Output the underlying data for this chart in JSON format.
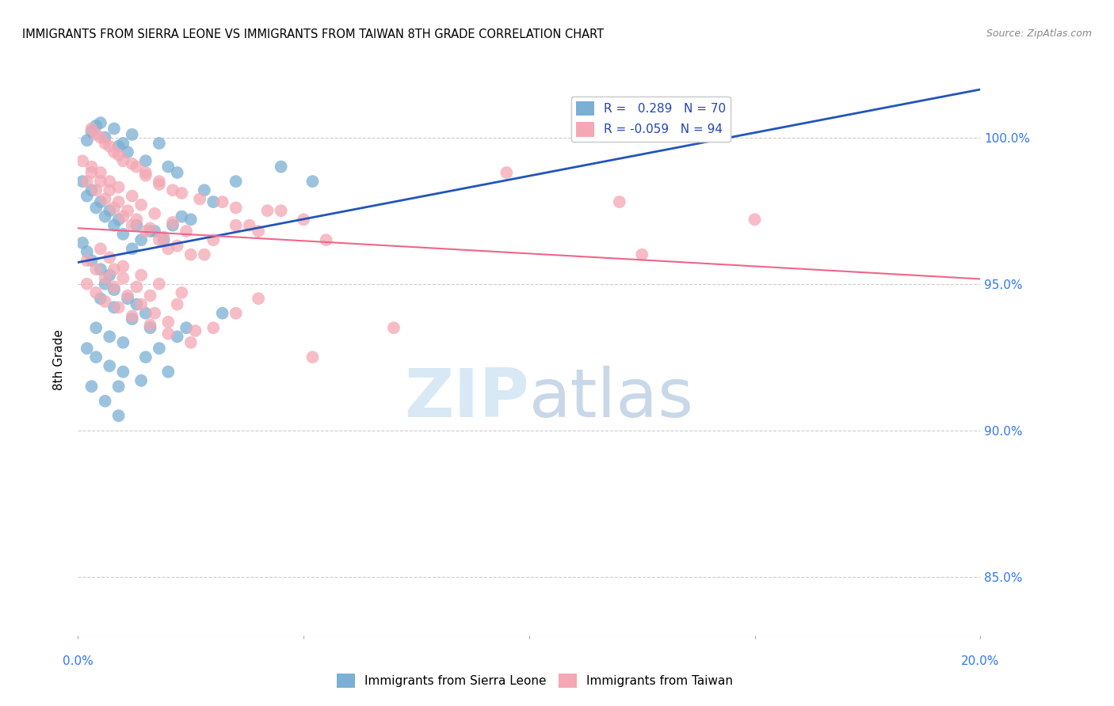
{
  "title": "IMMIGRANTS FROM SIERRA LEONE VS IMMIGRANTS FROM TAIWAN 8TH GRADE CORRELATION CHART",
  "source": "Source: ZipAtlas.com",
  "ylabel": "8th Grade",
  "ytick_labels": [
    "85.0%",
    "90.0%",
    "95.0%",
    "100.0%"
  ],
  "ytick_values": [
    85.0,
    90.0,
    95.0,
    100.0
  ],
  "xmin": 0.0,
  "xmax": 20.0,
  "ymin": 83.0,
  "ymax": 101.8,
  "legend_blue_label": "R =   0.289   N = 70",
  "legend_pink_label": "R = -0.059   N = 94",
  "legend_bottom_blue": "Immigrants from Sierra Leone",
  "legend_bottom_pink": "Immigrants from Taiwan",
  "blue_color": "#7BAFD4",
  "pink_color": "#F4A7B4",
  "blue_line_color": "#2255BB",
  "pink_line_color": "#EE6688",
  "blue_scatter_x": [
    0.3,
    0.5,
    0.8,
    1.0,
    1.2,
    0.2,
    0.4,
    0.6,
    0.9,
    1.1,
    1.5,
    1.8,
    2.0,
    2.2,
    0.1,
    0.3,
    0.5,
    0.7,
    0.9,
    1.3,
    1.6,
    1.9,
    2.5,
    3.0,
    3.5,
    0.2,
    0.4,
    0.6,
    0.8,
    1.0,
    0.1,
    0.2,
    0.3,
    0.5,
    0.7,
    1.2,
    1.4,
    1.7,
    2.1,
    2.3,
    0.6,
    0.8,
    1.1,
    1.3,
    1.5,
    2.8,
    4.5,
    5.2,
    0.4,
    0.7,
    1.0,
    1.5,
    2.0,
    0.3,
    0.6,
    0.9,
    1.8,
    2.4,
    3.2,
    0.5,
    0.8,
    1.2,
    1.6,
    2.2,
    0.2,
    0.4,
    0.7,
    1.0,
    1.4,
    0.9
  ],
  "blue_scatter_y": [
    100.2,
    100.5,
    100.3,
    99.8,
    100.1,
    99.9,
    100.4,
    100.0,
    99.7,
    99.5,
    99.2,
    99.8,
    99.0,
    98.8,
    98.5,
    98.2,
    97.8,
    97.5,
    97.2,
    97.0,
    96.8,
    96.5,
    97.2,
    97.8,
    98.5,
    98.0,
    97.6,
    97.3,
    97.0,
    96.7,
    96.4,
    96.1,
    95.8,
    95.5,
    95.3,
    96.2,
    96.5,
    96.8,
    97.0,
    97.3,
    95.0,
    94.8,
    94.5,
    94.3,
    94.0,
    98.2,
    99.0,
    98.5,
    93.5,
    93.2,
    93.0,
    92.5,
    92.0,
    91.5,
    91.0,
    90.5,
    92.8,
    93.5,
    94.0,
    94.5,
    94.2,
    93.8,
    93.5,
    93.2,
    92.8,
    92.5,
    92.2,
    92.0,
    91.7,
    91.5
  ],
  "pink_scatter_x": [
    0.2,
    0.4,
    0.6,
    0.8,
    1.0,
    1.2,
    1.5,
    1.8,
    2.0,
    2.5,
    3.0,
    3.5,
    4.0,
    4.5,
    5.0,
    0.3,
    0.5,
    0.7,
    0.9,
    1.1,
    1.3,
    1.6,
    1.9,
    2.2,
    2.8,
    0.1,
    0.3,
    0.5,
    0.7,
    0.9,
    1.2,
    1.4,
    1.7,
    2.1,
    2.4,
    0.4,
    0.6,
    0.8,
    1.0,
    1.3,
    1.5,
    1.8,
    2.3,
    3.2,
    4.2,
    0.2,
    0.4,
    0.6,
    0.8,
    1.1,
    1.4,
    1.7,
    2.0,
    2.6,
    3.8,
    0.3,
    0.5,
    0.7,
    0.9,
    1.2,
    1.5,
    1.8,
    2.1,
    2.7,
    3.5,
    0.2,
    0.4,
    0.6,
    0.9,
    1.2,
    1.6,
    2.0,
    2.5,
    3.0,
    4.0,
    5.5,
    9.5,
    12.0,
    0.8,
    1.0,
    1.3,
    1.6,
    2.2,
    3.5,
    0.5,
    0.7,
    1.0,
    1.4,
    1.8,
    2.3,
    5.2,
    7.0,
    12.5,
    15.0
  ],
  "pink_scatter_y": [
    98.5,
    98.2,
    97.9,
    97.6,
    97.3,
    97.0,
    96.8,
    96.5,
    96.2,
    96.0,
    96.5,
    97.0,
    96.8,
    97.5,
    97.2,
    98.8,
    98.5,
    98.2,
    97.8,
    97.5,
    97.2,
    96.9,
    96.6,
    96.3,
    96.0,
    99.2,
    99.0,
    98.8,
    98.5,
    98.3,
    98.0,
    97.7,
    97.4,
    97.1,
    96.8,
    100.1,
    99.8,
    99.5,
    99.2,
    99.0,
    98.7,
    98.4,
    98.1,
    97.8,
    97.5,
    95.8,
    95.5,
    95.2,
    94.9,
    94.6,
    94.3,
    94.0,
    93.7,
    93.4,
    97.0,
    100.3,
    100.0,
    99.7,
    99.4,
    99.1,
    98.8,
    98.5,
    98.2,
    97.9,
    97.6,
    95.0,
    94.7,
    94.4,
    94.2,
    93.9,
    93.6,
    93.3,
    93.0,
    93.5,
    94.5,
    96.5,
    98.8,
    97.8,
    95.5,
    95.2,
    94.9,
    94.6,
    94.3,
    94.0,
    96.2,
    95.9,
    95.6,
    95.3,
    95.0,
    94.7,
    92.5,
    93.5,
    96.0,
    97.2
  ]
}
